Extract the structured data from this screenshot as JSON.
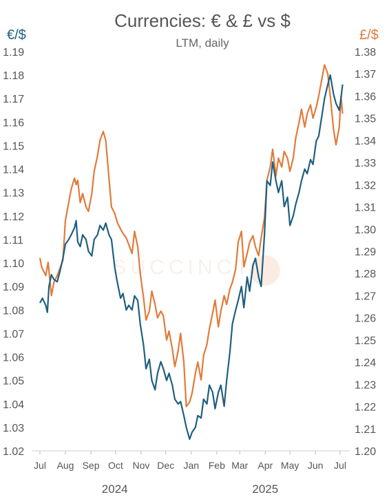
{
  "chart_data": {
    "type": "line",
    "title": "Currencies: € & £ vs $",
    "subtitle": "LTM, daily",
    "watermark": "SUCCINCT",
    "left_axis": {
      "label": "€/$",
      "color": "#1f5f7f",
      "ylim": [
        1.02,
        1.19
      ],
      "ticks": [
        "1.02",
        "1.03",
        "1.04",
        "1.05",
        "1.06",
        "1.07",
        "1.08",
        "1.09",
        "1.10",
        "1.11",
        "1.12",
        "1.13",
        "1.14",
        "1.15",
        "1.16",
        "1.17",
        "1.18",
        "1.19"
      ]
    },
    "right_axis": {
      "label": "£/$",
      "color": "#e07b39",
      "ylim": [
        1.2,
        1.38
      ],
      "ticks": [
        "1.20",
        "1.21",
        "1.22",
        "1.23",
        "1.24",
        "1.25",
        "1.26",
        "1.27",
        "1.28",
        "1.29",
        "1.30",
        "1.31",
        "1.32",
        "1.33",
        "1.34",
        "1.35",
        "1.36",
        "1.37",
        "1.38"
      ]
    },
    "x_axis": {
      "month_labels": [
        "Jul",
        "Aug",
        "Sep",
        "Oct",
        "Nov",
        "Dec",
        "Jan",
        "Feb",
        "Mar",
        "Apr",
        "May",
        "Jun",
        "Jul"
      ],
      "month_dates": [
        "2024-07-01",
        "2024-08-01",
        "2024-09-01",
        "2024-10-01",
        "2024-11-01",
        "2024-12-01",
        "2025-01-01",
        "2025-02-01",
        "2025-03-01",
        "2025-04-01",
        "2025-05-01",
        "2025-06-01",
        "2025-07-01"
      ],
      "year_labels": [
        {
          "label": "2024",
          "date": "2024-09-30"
        },
        {
          "label": "2025",
          "date": "2025-04-01"
        }
      ],
      "range": [
        "2024-07-01",
        "2025-07-01"
      ]
    },
    "grid": false,
    "series": [
      {
        "name": "€/$",
        "axis": "left",
        "color": "#1f5f7f",
        "points": [
          [
            "2024-07-01",
            1.083
          ],
          [
            "2024-07-04",
            1.085
          ],
          [
            "2024-07-08",
            1.082
          ],
          [
            "2024-07-10",
            1.079
          ],
          [
            "2024-07-12",
            1.09
          ],
          [
            "2024-07-15",
            1.095
          ],
          [
            "2024-07-18",
            1.093
          ],
          [
            "2024-07-22",
            1.092
          ],
          [
            "2024-07-25",
            1.096
          ],
          [
            "2024-07-29",
            1.102
          ],
          [
            "2024-08-01",
            1.108
          ],
          [
            "2024-08-05",
            1.11
          ],
          [
            "2024-08-08",
            1.112
          ],
          [
            "2024-08-12",
            1.115
          ],
          [
            "2024-08-14",
            1.118
          ],
          [
            "2024-08-16",
            1.109
          ],
          [
            "2024-08-19",
            1.107
          ],
          [
            "2024-08-22",
            1.112
          ],
          [
            "2024-08-26",
            1.11
          ],
          [
            "2024-08-29",
            1.105
          ],
          [
            "2024-09-02",
            1.103
          ],
          [
            "2024-09-05",
            1.11
          ],
          [
            "2024-09-09",
            1.112
          ],
          [
            "2024-09-12",
            1.116
          ],
          [
            "2024-09-16",
            1.114
          ],
          [
            "2024-09-19",
            1.117
          ],
          [
            "2024-09-23",
            1.112
          ],
          [
            "2024-09-26",
            1.11
          ],
          [
            "2024-09-30",
            1.098
          ],
          [
            "2024-10-03",
            1.092
          ],
          [
            "2024-10-07",
            1.085
          ],
          [
            "2024-10-10",
            1.087
          ],
          [
            "2024-10-14",
            1.08
          ],
          [
            "2024-10-17",
            1.082
          ],
          [
            "2024-10-21",
            1.08
          ],
          [
            "2024-10-24",
            1.086
          ],
          [
            "2024-10-28",
            1.084
          ],
          [
            "2024-10-31",
            1.074
          ],
          [
            "2024-11-04",
            1.065
          ],
          [
            "2024-11-07",
            1.055
          ],
          [
            "2024-11-11",
            1.059
          ],
          [
            "2024-11-14",
            1.05
          ],
          [
            "2024-11-18",
            1.046
          ],
          [
            "2024-11-21",
            1.053
          ],
          [
            "2024-11-25",
            1.058
          ],
          [
            "2024-11-28",
            1.055
          ],
          [
            "2024-12-02",
            1.05
          ],
          [
            "2024-12-05",
            1.053
          ],
          [
            "2024-12-09",
            1.048
          ],
          [
            "2024-12-12",
            1.042
          ],
          [
            "2024-12-16",
            1.04
          ],
          [
            "2024-12-19",
            1.041
          ],
          [
            "2024-12-23",
            1.035
          ],
          [
            "2024-12-26",
            1.03
          ],
          [
            "2024-12-30",
            1.025
          ],
          [
            "2025-01-02",
            1.028
          ],
          [
            "2025-01-06",
            1.03
          ],
          [
            "2025-01-09",
            1.035
          ],
          [
            "2025-01-13",
            1.034
          ],
          [
            "2025-01-16",
            1.042
          ],
          [
            "2025-01-20",
            1.04
          ],
          [
            "2025-01-23",
            1.048
          ],
          [
            "2025-01-27",
            1.045
          ],
          [
            "2025-01-30",
            1.038
          ],
          [
            "2025-02-03",
            1.045
          ],
          [
            "2025-02-06",
            1.048
          ],
          [
            "2025-02-10",
            1.039
          ],
          [
            "2025-02-13",
            1.05
          ],
          [
            "2025-02-17",
            1.062
          ],
          [
            "2025-02-20",
            1.074
          ],
          [
            "2025-02-24",
            1.08
          ],
          [
            "2025-02-27",
            1.084
          ],
          [
            "2025-03-03",
            1.09
          ],
          [
            "2025-03-06",
            1.081
          ],
          [
            "2025-03-10",
            1.094
          ],
          [
            "2025-03-13",
            1.088
          ],
          [
            "2025-03-17",
            1.099
          ],
          [
            "2025-03-20",
            1.102
          ],
          [
            "2025-03-24",
            1.094
          ],
          [
            "2025-03-27",
            1.09
          ],
          [
            "2025-03-31",
            1.112
          ],
          [
            "2025-04-03",
            1.135
          ],
          [
            "2025-04-07",
            1.133
          ],
          [
            "2025-04-10",
            1.143
          ],
          [
            "2025-04-14",
            1.135
          ],
          [
            "2025-04-17",
            1.13
          ],
          [
            "2025-04-21",
            1.135
          ],
          [
            "2025-04-24",
            1.124
          ],
          [
            "2025-04-28",
            1.128
          ],
          [
            "2025-05-01",
            1.116
          ],
          [
            "2025-05-05",
            1.12
          ],
          [
            "2025-05-08",
            1.125
          ],
          [
            "2025-05-12",
            1.13
          ],
          [
            "2025-05-15",
            1.135
          ],
          [
            "2025-05-19",
            1.14
          ],
          [
            "2025-05-22",
            1.138
          ],
          [
            "2025-05-26",
            1.144
          ],
          [
            "2025-05-29",
            1.142
          ],
          [
            "2025-06-02",
            1.152
          ],
          [
            "2025-06-05",
            1.154
          ],
          [
            "2025-06-09",
            1.163
          ],
          [
            "2025-06-12",
            1.17
          ],
          [
            "2025-06-16",
            1.176
          ],
          [
            "2025-06-19",
            1.18
          ],
          [
            "2025-06-23",
            1.172
          ],
          [
            "2025-06-26",
            1.168
          ],
          [
            "2025-06-30",
            1.165
          ],
          [
            "2025-07-02",
            1.17
          ],
          [
            "2025-07-04",
            1.176
          ]
        ]
      },
      {
        "name": "£/$",
        "axis": "right",
        "color": "#e07b39",
        "points": [
          [
            "2024-07-01",
            1.287
          ],
          [
            "2024-07-03",
            1.283
          ],
          [
            "2024-07-08",
            1.279
          ],
          [
            "2024-07-11",
            1.285
          ],
          [
            "2024-07-15",
            1.27
          ],
          [
            "2024-07-18",
            1.276
          ],
          [
            "2024-07-22",
            1.279
          ],
          [
            "2024-07-25",
            1.282
          ],
          [
            "2024-07-29",
            1.286
          ],
          [
            "2024-08-01",
            1.304
          ],
          [
            "2024-08-05",
            1.312
          ],
          [
            "2024-08-08",
            1.318
          ],
          [
            "2024-08-12",
            1.323
          ],
          [
            "2024-08-14",
            1.32
          ],
          [
            "2024-08-16",
            1.322
          ],
          [
            "2024-08-19",
            1.312
          ],
          [
            "2024-08-22",
            1.316
          ],
          [
            "2024-08-26",
            1.31
          ],
          [
            "2024-08-29",
            1.308
          ],
          [
            "2024-09-02",
            1.316
          ],
          [
            "2024-09-05",
            1.326
          ],
          [
            "2024-09-09",
            1.333
          ],
          [
            "2024-09-12",
            1.34
          ],
          [
            "2024-09-16",
            1.344
          ],
          [
            "2024-09-19",
            1.34
          ],
          [
            "2024-09-23",
            1.323
          ],
          [
            "2024-09-26",
            1.31
          ],
          [
            "2024-09-30",
            1.307
          ],
          [
            "2024-10-03",
            1.303
          ],
          [
            "2024-10-07",
            1.3
          ],
          [
            "2024-10-10",
            1.298
          ],
          [
            "2024-10-14",
            1.296
          ],
          [
            "2024-10-17",
            1.293
          ],
          [
            "2024-10-21",
            1.289
          ],
          [
            "2024-10-24",
            1.299
          ],
          [
            "2024-10-28",
            1.292
          ],
          [
            "2024-10-31",
            1.28
          ],
          [
            "2024-11-04",
            1.269
          ],
          [
            "2024-11-07",
            1.259
          ],
          [
            "2024-11-11",
            1.263
          ],
          [
            "2024-11-14",
            1.272
          ],
          [
            "2024-11-18",
            1.266
          ],
          [
            "2024-11-21",
            1.26
          ],
          [
            "2024-11-25",
            1.263
          ],
          [
            "2024-11-28",
            1.261
          ],
          [
            "2024-12-02",
            1.25
          ],
          [
            "2024-12-05",
            1.254
          ],
          [
            "2024-12-09",
            1.246
          ],
          [
            "2024-12-12",
            1.238
          ],
          [
            "2024-12-16",
            1.245
          ],
          [
            "2024-12-19",
            1.253
          ],
          [
            "2024-12-23",
            1.24
          ],
          [
            "2024-12-26",
            1.22
          ],
          [
            "2024-12-30",
            1.222
          ],
          [
            "2025-01-02",
            1.226
          ],
          [
            "2025-01-06",
            1.235
          ],
          [
            "2025-01-09",
            1.24
          ],
          [
            "2025-01-13",
            1.232
          ],
          [
            "2025-01-16",
            1.243
          ],
          [
            "2025-01-20",
            1.248
          ],
          [
            "2025-01-23",
            1.255
          ],
          [
            "2025-01-27",
            1.262
          ],
          [
            "2025-01-30",
            1.268
          ],
          [
            "2025-02-03",
            1.256
          ],
          [
            "2025-02-06",
            1.263
          ],
          [
            "2025-02-10",
            1.27
          ],
          [
            "2025-02-13",
            1.266
          ],
          [
            "2025-02-17",
            1.273
          ],
          [
            "2025-02-20",
            1.276
          ],
          [
            "2025-02-24",
            1.282
          ],
          [
            "2025-02-27",
            1.294
          ],
          [
            "2025-03-03",
            1.299
          ],
          [
            "2025-03-06",
            1.283
          ],
          [
            "2025-03-10",
            1.289
          ],
          [
            "2025-03-13",
            1.294
          ],
          [
            "2025-03-17",
            1.297
          ],
          [
            "2025-03-20",
            1.292
          ],
          [
            "2025-03-24",
            1.288
          ],
          [
            "2025-03-27",
            1.296
          ],
          [
            "2025-03-31",
            1.305
          ],
          [
            "2025-04-03",
            1.322
          ],
          [
            "2025-04-07",
            1.328
          ],
          [
            "2025-04-10",
            1.336
          ],
          [
            "2025-04-14",
            1.324
          ],
          [
            "2025-04-17",
            1.332
          ],
          [
            "2025-04-21",
            1.328
          ],
          [
            "2025-04-24",
            1.335
          ],
          [
            "2025-04-28",
            1.332
          ],
          [
            "2025-05-01",
            1.326
          ],
          [
            "2025-05-05",
            1.332
          ],
          [
            "2025-05-08",
            1.341
          ],
          [
            "2025-05-12",
            1.348
          ],
          [
            "2025-05-15",
            1.354
          ],
          [
            "2025-05-19",
            1.346
          ],
          [
            "2025-05-22",
            1.352
          ],
          [
            "2025-05-26",
            1.356
          ],
          [
            "2025-05-29",
            1.35
          ],
          [
            "2025-06-02",
            1.355
          ],
          [
            "2025-06-05",
            1.36
          ],
          [
            "2025-06-09",
            1.368
          ],
          [
            "2025-06-12",
            1.374
          ],
          [
            "2025-06-16",
            1.37
          ],
          [
            "2025-06-19",
            1.36
          ],
          [
            "2025-06-23",
            1.345
          ],
          [
            "2025-06-26",
            1.338
          ],
          [
            "2025-06-30",
            1.346
          ],
          [
            "2025-07-02",
            1.36
          ],
          [
            "2025-07-04",
            1.352
          ]
        ]
      }
    ]
  }
}
